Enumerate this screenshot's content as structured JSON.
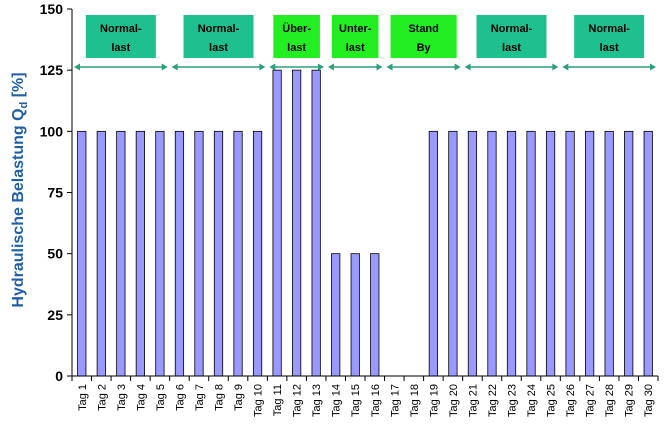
{
  "chart_data": {
    "type": "bar",
    "ylabel": "Hydraulische Belastung Q",
    "ylabel_sub": "d",
    "ylabel_unit": " [%]",
    "ylim": [
      0,
      150
    ],
    "yticks": [
      0,
      25,
      50,
      75,
      100,
      125,
      150
    ],
    "grid": false,
    "categories": [
      "Tag 1",
      "Tag 2",
      "Tag 3",
      "Tag 4",
      "Tag 5",
      "Tag 6",
      "Tag 7",
      "Tag 8",
      "Tag 9",
      "Tag 10",
      "Tag 11",
      "Tag 12",
      "Tag 13",
      "Tag 14",
      "Tag 15",
      "Tag 16",
      "Tag 17",
      "Tag 18",
      "Tag 19",
      "Tag 20",
      "Tag 21",
      "Tag 22",
      "Tag 23",
      "Tag 24",
      "Tag 25",
      "Tag 26",
      "Tag 27",
      "Tag 28",
      "Tag 29",
      "Tag 30"
    ],
    "values": [
      100,
      100,
      100,
      100,
      100,
      100,
      100,
      100,
      100,
      100,
      125,
      125,
      125,
      50,
      50,
      50,
      0,
      0,
      100,
      100,
      100,
      100,
      100,
      100,
      100,
      100,
      100,
      100,
      100,
      100
    ],
    "bar_color": "#9999ff",
    "bar_edge": "#000000",
    "arrow_color": "#2ca07a",
    "phases": [
      {
        "line1": "Normal-",
        "line2": "last",
        "start": 1,
        "end": 5,
        "color": "#1fc08f"
      },
      {
        "line1": "Normal-",
        "line2": "last",
        "start": 6,
        "end": 10,
        "color": "#1fc08f"
      },
      {
        "line1": "Über-",
        "line2": "last",
        "start": 11,
        "end": 13,
        "color": "#22ee22"
      },
      {
        "line1": "Unter-",
        "line2": "last",
        "start": 14,
        "end": 16,
        "color": "#22ee22"
      },
      {
        "line1": "Stand",
        "line2": "By",
        "start": 17,
        "end": 20,
        "color": "#22ee22"
      },
      {
        "line1": "Normal-",
        "line2": "last",
        "start": 21,
        "end": 25,
        "color": "#1fc08f"
      },
      {
        "line1": "Normal-",
        "line2": "last",
        "start": 26,
        "end": 30,
        "color": "#1fc08f"
      }
    ]
  }
}
